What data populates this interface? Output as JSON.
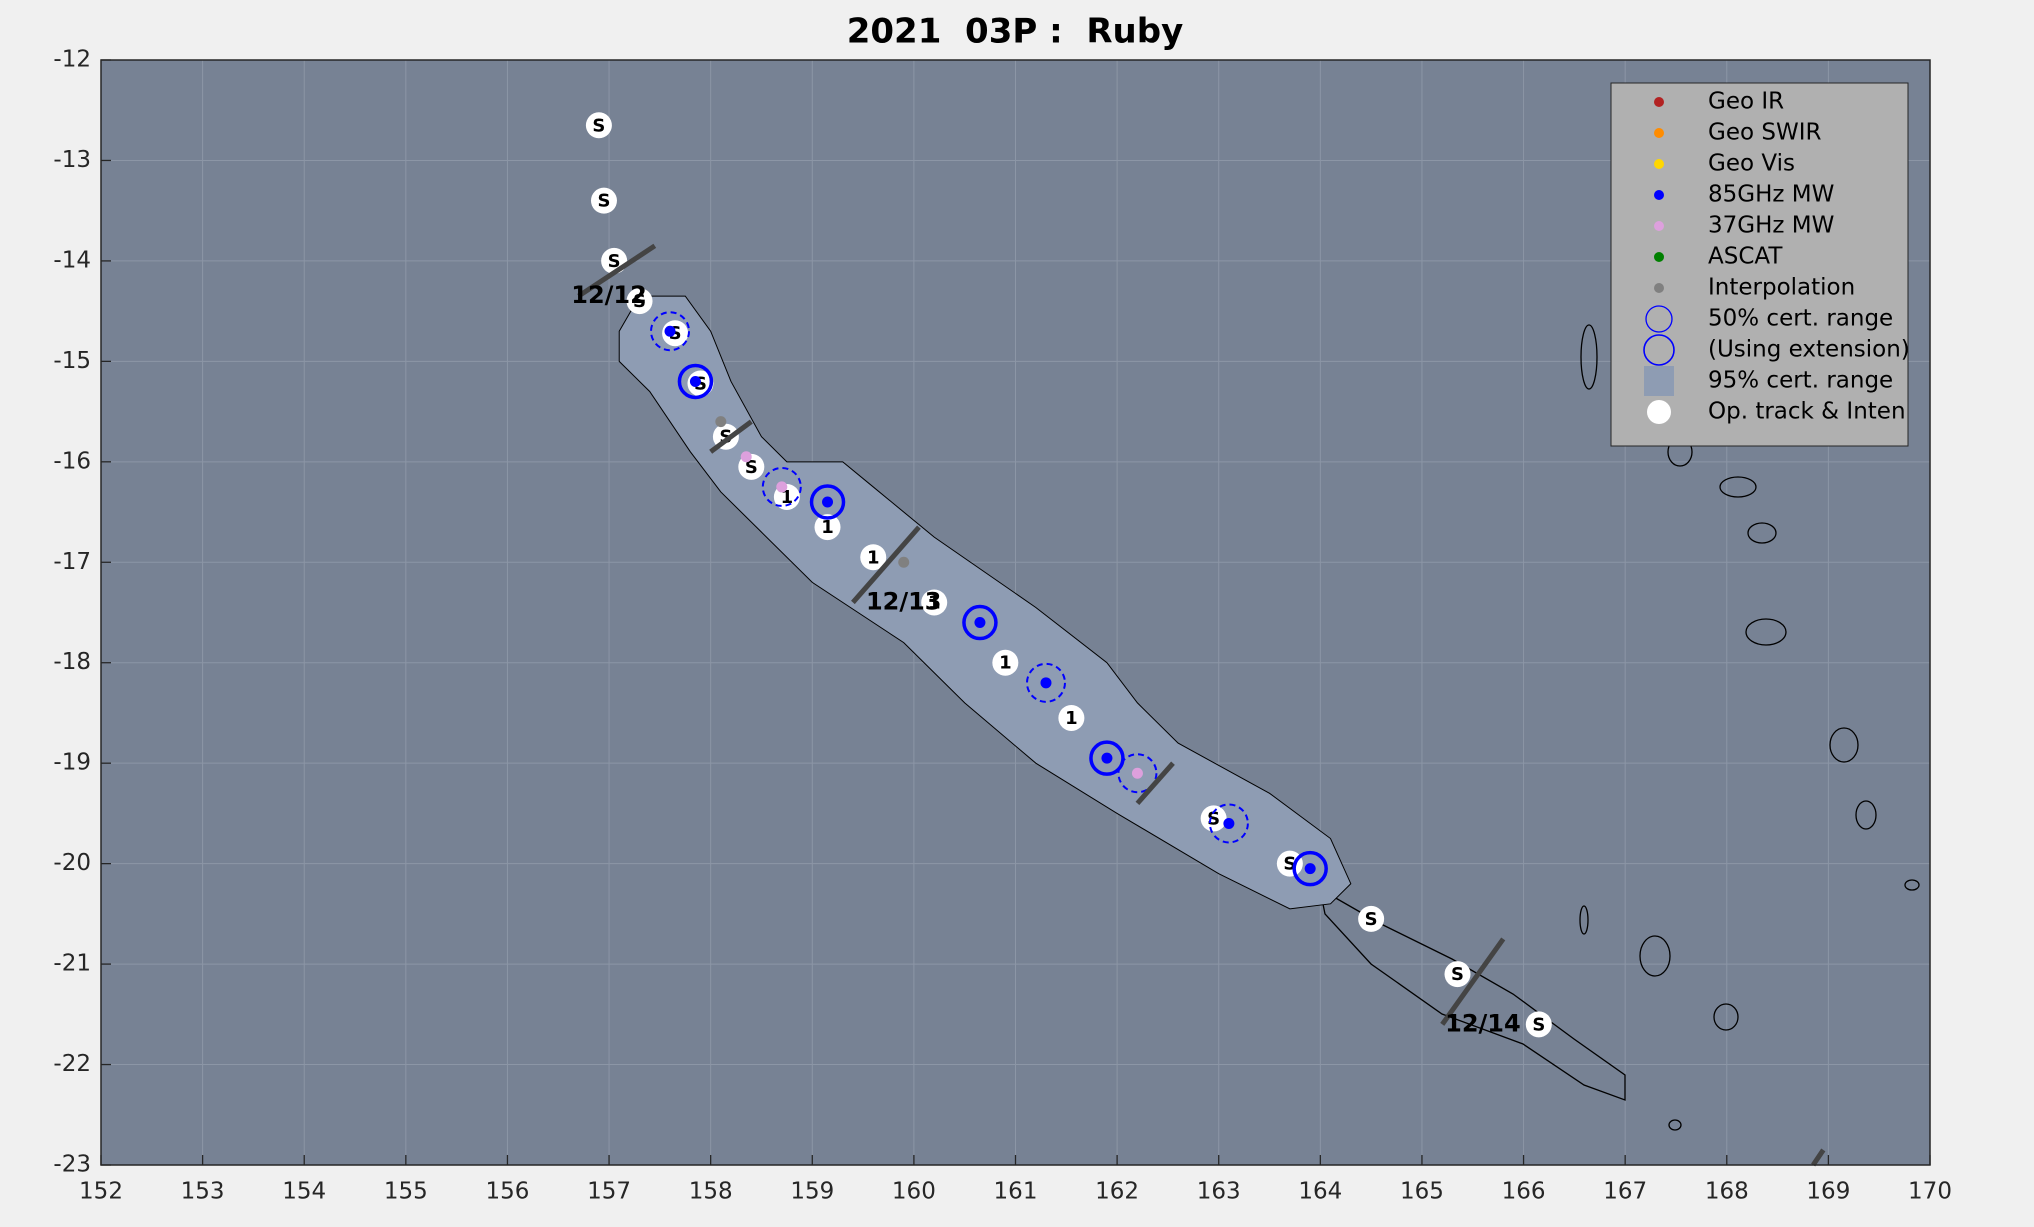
{
  "chart_data": {
    "type": "track",
    "title": "2021  03P :  Ruby",
    "xlim": [
      152,
      170
    ],
    "ylim": [
      -23,
      -12
    ],
    "xticks": [
      152,
      153,
      154,
      155,
      156,
      157,
      158,
      159,
      160,
      161,
      162,
      163,
      164,
      165,
      166,
      167,
      168,
      169,
      170
    ],
    "yticks": [
      -12,
      -13,
      -14,
      -15,
      -16,
      -17,
      -18,
      -19,
      -20,
      -21,
      -22,
      -23
    ],
    "grid": true,
    "legend": "northeast",
    "series": [
      {
        "name": "Geo IR",
        "color": "#b22222",
        "marker": "dot",
        "x": [],
        "y": []
      },
      {
        "name": "Geo SWIR",
        "color": "#ff8c00",
        "marker": "dot",
        "x": [],
        "y": []
      },
      {
        "name": "Geo Vis",
        "color": "#ffd700",
        "marker": "dot",
        "x": [],
        "y": []
      },
      {
        "name": "85GHz MW",
        "color": "#0000ff",
        "marker": "dot",
        "x": [
          157.6,
          157.85,
          159.15,
          160.65,
          161.3,
          161.9,
          163.1,
          163.9
        ],
        "y": [
          -14.7,
          -15.2,
          -16.4,
          -17.6,
          -18.2,
          -18.95,
          -19.6,
          -20.05
        ]
      },
      {
        "name": "37GHz MW",
        "color": "#dda0dd",
        "marker": "dot",
        "x": [
          158.35,
          158.7,
          162.2
        ],
        "y": [
          -15.95,
          -16.25,
          -19.1
        ]
      },
      {
        "name": "ASCAT",
        "color": "#008000",
        "marker": "dot",
        "x": [],
        "y": []
      },
      {
        "name": "Interpolation",
        "color": "#808080",
        "marker": "dot",
        "x": [
          158.1,
          159.9
        ],
        "y": [
          -15.6,
          -17.0
        ]
      },
      {
        "name": "50% cert. range",
        "color": "#0000ff",
        "marker": "ring",
        "x": [
          157.85,
          159.15,
          160.65,
          161.9,
          163.9
        ],
        "y": [
          -15.2,
          -16.4,
          -17.6,
          -18.95,
          -20.05
        ]
      },
      {
        "name": "(Using extension)",
        "color": "#0000ff",
        "marker": "ring-dashed",
        "x": [
          157.6,
          158.7,
          161.3,
          162.2,
          163.1
        ],
        "y": [
          -14.7,
          -16.25,
          -18.2,
          -19.1,
          -19.6
        ]
      },
      {
        "name": "95% cert. range",
        "color": "#8e9cb3",
        "marker": "square",
        "x": [
          157.1,
          157.3,
          157.75,
          158.0,
          158.2,
          158.5,
          158.75,
          159.3,
          159.6,
          160.2,
          161.2,
          161.9,
          162.2,
          162.6,
          163.5,
          164.1,
          164.3,
          164.1,
          163.7,
          163.0,
          162.0,
          161.2,
          160.5,
          159.9,
          159.0,
          158.5,
          158.1,
          157.8,
          157.4,
          157.1
        ],
        "y": [
          -14.7,
          -14.35,
          -14.35,
          -14.7,
          -15.2,
          -15.75,
          -16.0,
          -16.0,
          -16.25,
          -16.75,
          -17.45,
          -18.0,
          -18.4,
          -18.8,
          -19.3,
          -19.75,
          -20.2,
          -20.4,
          -20.45,
          -20.1,
          -19.5,
          -19.0,
          -18.4,
          -17.8,
          -17.2,
          -16.7,
          -16.3,
          -15.9,
          -15.3,
          -15.0
        ]
      },
      {
        "name": "Op. track & Inten",
        "color": "#ffffff",
        "marker": "disc",
        "x": [
          156.9,
          156.95,
          157.05,
          157.3,
          157.65,
          157.9,
          158.15,
          158.4,
          158.75,
          159.15,
          159.6,
          160.2,
          160.9,
          161.55,
          162.95,
          163.7,
          164.5,
          165.35,
          166.15
        ],
        "y": [
          -12.65,
          -13.4,
          -14.0,
          -14.4,
          -14.72,
          -15.22,
          -15.75,
          -16.05,
          -16.35,
          -16.65,
          -16.95,
          -17.4,
          -18.0,
          -18.55,
          -19.55,
          -20.0,
          -20.55,
          -21.1,
          -21.6
        ],
        "labels": [
          "S",
          "S",
          "S",
          "S",
          "S",
          "S",
          "S",
          "S",
          "1",
          "1",
          "1",
          "1",
          "1",
          "1",
          "S",
          "S",
          "S",
          "S",
          "S"
        ]
      }
    ],
    "day_marks": [
      {
        "x": [
          156.7,
          157.45
        ],
        "y": [
          -14.35,
          -13.85
        ],
        "label": "12/12",
        "label_x": 157.0,
        "label_y": -14.35
      },
      {
        "x": [
          158.0,
          158.4
        ],
        "y": [
          -15.9,
          -15.6
        ]
      },
      {
        "x": [
          159.4,
          160.05
        ],
        "y": [
          -17.4,
          -16.65
        ],
        "label": "12/13",
        "label_x": 159.9,
        "label_y": -17.4
      },
      {
        "x": [
          162.2,
          162.55
        ],
        "y": [
          -19.4,
          -19.0
        ]
      },
      {
        "x": [
          165.2,
          165.8
        ],
        "y": [
          -21.6,
          -20.75
        ],
        "label": "12/14",
        "label_x": 165.6,
        "label_y": -21.6
      },
      {
        "x": [
          168.85,
          168.95
        ],
        "y": [
          -23.0,
          -22.85
        ]
      }
    ]
  }
}
